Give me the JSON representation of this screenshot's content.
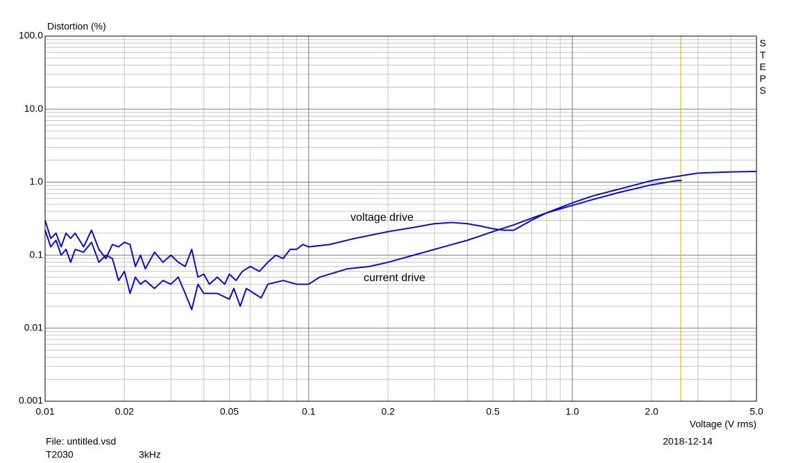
{
  "chart_data": {
    "type": "line",
    "y_label": "Distortion (%)",
    "x_label": "Voltage (V rms)",
    "side_label": "STEPS",
    "annotations": [
      "voltage drive",
      "current drive"
    ],
    "footer": {
      "file": "File: untitled.vsd",
      "model": "T2030",
      "frequency": "3kHz",
      "date": "2018-12-14"
    },
    "x_log": true,
    "y_log": true,
    "grid": true,
    "xlim": [
      0.01,
      5.0
    ],
    "ylim": [
      0.001,
      100
    ],
    "xticks": [
      0.01,
      0.02,
      0.05,
      0.1,
      0.2,
      0.5,
      {
        "value": 1,
        "label": "1.0"
      },
      {
        "value": 2,
        "label": "2.0"
      },
      {
        "value": 5,
        "label": "5.0"
      }
    ],
    "yticks": [
      0.001,
      0.01,
      0.1,
      {
        "value": 1,
        "label": "1.0"
      },
      {
        "value": 10,
        "label": "10.0"
      },
      {
        "value": 100,
        "label": "100.0"
      }
    ],
    "x_minor_ticks": [
      0.03,
      0.04,
      0.06,
      0.07,
      0.08,
      0.09,
      0.3,
      0.4,
      0.6,
      0.7,
      0.8,
      0.9,
      3,
      4
    ],
    "y_minor_ticks": [
      0.002,
      0.003,
      0.004,
      0.005,
      0.006,
      0.007,
      0.008,
      0.009,
      0.02,
      0.03,
      0.04,
      0.05,
      0.06,
      0.07,
      0.08,
      0.09,
      0.2,
      0.3,
      0.4,
      0.5,
      0.6,
      0.7,
      0.8,
      0.9,
      2,
      3,
      4,
      5,
      6,
      7,
      8,
      9,
      20,
      30,
      40,
      50,
      60,
      70,
      80,
      90
    ],
    "cursor": {
      "x": 2.58,
      "color": "#d4b000"
    },
    "series": [
      {
        "name": "voltage drive",
        "color": "#0a0acc",
        "x": [
          0.01,
          0.0105,
          0.011,
          0.0115,
          0.012,
          0.0125,
          0.013,
          0.014,
          0.015,
          0.016,
          0.017,
          0.018,
          0.019,
          0.02,
          0.021,
          0.022,
          0.023,
          0.024,
          0.026,
          0.028,
          0.03,
          0.032,
          0.034,
          0.036,
          0.038,
          0.04,
          0.042,
          0.045,
          0.048,
          0.05,
          0.053,
          0.056,
          0.06,
          0.065,
          0.07,
          0.075,
          0.08,
          0.085,
          0.09,
          0.095,
          0.1,
          0.12,
          0.15,
          0.2,
          0.25,
          0.3,
          0.35,
          0.4,
          0.45,
          0.5,
          0.55,
          0.6,
          0.7,
          0.8,
          1.0,
          1.2,
          1.5,
          2.0,
          2.5,
          3.0,
          4.0,
          5.0
        ],
        "values": [
          0.3,
          0.17,
          0.2,
          0.13,
          0.2,
          0.17,
          0.2,
          0.13,
          0.22,
          0.12,
          0.09,
          0.14,
          0.13,
          0.15,
          0.14,
          0.07,
          0.1,
          0.065,
          0.11,
          0.08,
          0.1,
          0.08,
          0.07,
          0.12,
          0.05,
          0.055,
          0.04,
          0.05,
          0.04,
          0.055,
          0.045,
          0.06,
          0.07,
          0.06,
          0.08,
          0.1,
          0.09,
          0.12,
          0.12,
          0.14,
          0.13,
          0.14,
          0.17,
          0.21,
          0.24,
          0.27,
          0.28,
          0.27,
          0.25,
          0.23,
          0.22,
          0.22,
          0.3,
          0.38,
          0.52,
          0.65,
          0.8,
          1.05,
          1.2,
          1.33,
          1.38,
          1.4
        ]
      },
      {
        "name": "current drive",
        "color": "#0a0acc",
        "x": [
          0.01,
          0.0105,
          0.011,
          0.0115,
          0.012,
          0.0125,
          0.013,
          0.014,
          0.015,
          0.016,
          0.017,
          0.018,
          0.019,
          0.02,
          0.021,
          0.022,
          0.023,
          0.024,
          0.026,
          0.028,
          0.03,
          0.032,
          0.034,
          0.036,
          0.038,
          0.04,
          0.045,
          0.05,
          0.052,
          0.055,
          0.058,
          0.062,
          0.066,
          0.07,
          0.08,
          0.09,
          0.1,
          0.11,
          0.12,
          0.14,
          0.17,
          0.2,
          0.25,
          0.3,
          0.4,
          0.5,
          0.6,
          0.7,
          0.8,
          1.0,
          1.2,
          1.5,
          2.0,
          2.5,
          2.6
        ],
        "values": [
          0.22,
          0.13,
          0.16,
          0.1,
          0.12,
          0.08,
          0.12,
          0.11,
          0.15,
          0.08,
          0.1,
          0.09,
          0.045,
          0.06,
          0.03,
          0.05,
          0.04,
          0.045,
          0.035,
          0.045,
          0.04,
          0.05,
          0.03,
          0.018,
          0.04,
          0.03,
          0.03,
          0.025,
          0.035,
          0.02,
          0.035,
          0.03,
          0.026,
          0.04,
          0.045,
          0.04,
          0.04,
          0.05,
          0.055,
          0.065,
          0.07,
          0.08,
          0.1,
          0.12,
          0.16,
          0.21,
          0.26,
          0.32,
          0.38,
          0.48,
          0.58,
          0.72,
          0.92,
          1.05,
          1.05
        ]
      }
    ]
  }
}
